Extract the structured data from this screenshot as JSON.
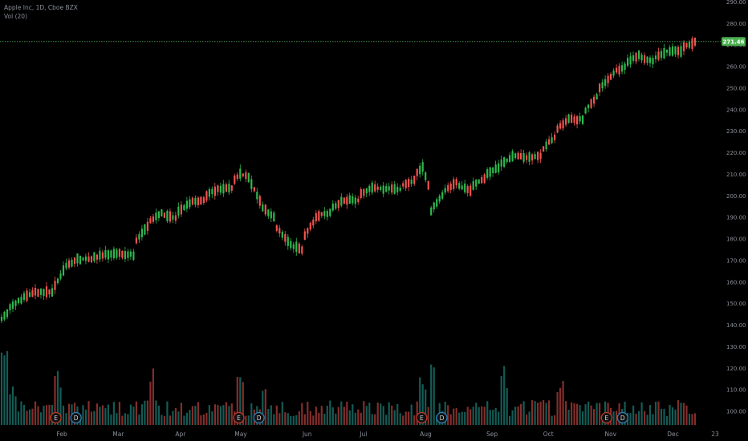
{
  "legend": {
    "symbol_line": "Apple Inc, 1D, Cboe BZX",
    "volume_line": "Vol (20)"
  },
  "colors": {
    "background": "#000000",
    "up": "#26a69a",
    "up_candle": "#2db84e",
    "down": "#ef5350",
    "price_line": "#4caf50",
    "axis_text": "#8a8f98"
  },
  "last_price": {
    "value": 271.46,
    "label": "271.46"
  },
  "markers": [
    {
      "label": "E",
      "date": "2019-01-29"
    },
    {
      "label": "D",
      "date": "2019-02-08"
    },
    {
      "label": "E",
      "date": "2019-04-30"
    },
    {
      "label": "D",
      "date": "2019-05-10"
    },
    {
      "label": "E",
      "date": "2019-07-30"
    },
    {
      "label": "D",
      "date": "2019-08-09"
    },
    {
      "label": "E",
      "date": "2019-10-30"
    },
    {
      "label": "D",
      "date": "2019-11-07"
    }
  ],
  "chart_data": {
    "type": "candlestick",
    "start_date": "2019-01-02",
    "end_date": "2019-12-13",
    "price_axis": {
      "min": 95,
      "max": 290,
      "ticks": [
        100,
        110,
        120,
        130,
        140,
        150,
        160,
        170,
        180,
        190,
        200,
        210,
        220,
        230,
        240,
        250,
        260,
        270,
        280,
        290
      ]
    },
    "price_tick_labels": [
      "100.00",
      "110.00",
      "120.00",
      "130.00",
      "140.00",
      "150.00",
      "160.00",
      "170.00",
      "180.00",
      "190.00",
      "200.00",
      "210.00",
      "220.00",
      "230.00",
      "240.00",
      "250.00",
      "260.00",
      "270.00",
      "280.00",
      "290.00"
    ],
    "x_axis": {
      "labels": [
        "Feb",
        "Mar",
        "Apr",
        "May",
        "Jun",
        "Jul",
        "Aug",
        "Sep",
        "Oct",
        "Nov",
        "Dec",
        "23"
      ],
      "label_dates": [
        "2019-02-01",
        "2019-03-01",
        "2019-04-01",
        "2019-05-01",
        "2019-06-03",
        "2019-07-01",
        "2019-08-01",
        "2019-09-03",
        "2019-10-01",
        "2019-11-01",
        "2019-12-02",
        "2019-12-23"
      ]
    },
    "series": [
      {
        "name": "Price",
        "values": [
          [
            "2019-01-02",
            140,
            146
          ],
          [
            "2019-01-10",
            150,
            152
          ],
          [
            "2019-01-18",
            154,
            156
          ],
          [
            "2019-01-28",
            154,
            157
          ],
          [
            "2019-02-01",
            163,
            167
          ],
          [
            "2019-02-08",
            170,
            171
          ],
          [
            "2019-02-15",
            170,
            171
          ],
          [
            "2019-02-22",
            172,
            173
          ],
          [
            "2019-02-28",
            173,
            173
          ],
          [
            "2019-03-08",
            173,
            172
          ],
          [
            "2019-03-11",
            178,
            180
          ],
          [
            "2019-03-15",
            185,
            187
          ],
          [
            "2019-03-22",
            192,
            192
          ],
          [
            "2019-03-29",
            189,
            190
          ],
          [
            "2019-04-05",
            196,
            197
          ],
          [
            "2019-04-12",
            198,
            198
          ],
          [
            "2019-04-19",
            203,
            203
          ],
          [
            "2019-04-26",
            203,
            204
          ],
          [
            "2019-05-01",
            210,
            210
          ],
          [
            "2019-05-06",
            208,
            208
          ],
          [
            "2019-05-10",
            197,
            198
          ],
          [
            "2019-05-17",
            190,
            190
          ],
          [
            "2019-05-24",
            178,
            179
          ],
          [
            "2019-05-31",
            175,
            175
          ],
          [
            "2019-06-07",
            190,
            190
          ],
          [
            "2019-06-14",
            192,
            192
          ],
          [
            "2019-06-21",
            198,
            198
          ],
          [
            "2019-06-28",
            198,
            198
          ],
          [
            "2019-07-05",
            204,
            204
          ],
          [
            "2019-07-12",
            203,
            203
          ],
          [
            "2019-07-19",
            203,
            203
          ],
          [
            "2019-07-26",
            207,
            207
          ],
          [
            "2019-07-31",
            213,
            213
          ],
          [
            "2019-08-05",
            193,
            193
          ],
          [
            "2019-08-09",
            200,
            200
          ],
          [
            "2019-08-16",
            206,
            206
          ],
          [
            "2019-08-23",
            202,
            202
          ],
          [
            "2019-08-30",
            208,
            208
          ],
          [
            "2019-09-06",
            213,
            213
          ],
          [
            "2019-09-13",
            218,
            218
          ],
          [
            "2019-09-20",
            218,
            218
          ],
          [
            "2019-09-27",
            218,
            218
          ],
          [
            "2019-10-04",
            227,
            227
          ],
          [
            "2019-10-11",
            236,
            236
          ],
          [
            "2019-10-18",
            235,
            235
          ],
          [
            "2019-10-25",
            246,
            246
          ],
          [
            "2019-11-01",
            255,
            255
          ],
          [
            "2019-11-08",
            260,
            260
          ],
          [
            "2019-11-15",
            265,
            265
          ],
          [
            "2019-11-22",
            262,
            262
          ],
          [
            "2019-11-29",
            267,
            267
          ],
          [
            "2019-12-06",
            267,
            267
          ],
          [
            "2019-12-13",
            271,
            271.46
          ]
        ]
      }
    ],
    "volume_axis": {
      "min": 0,
      "max": 100
    },
    "volume_note": "relative volume levels (0-100) in no printed unit"
  }
}
